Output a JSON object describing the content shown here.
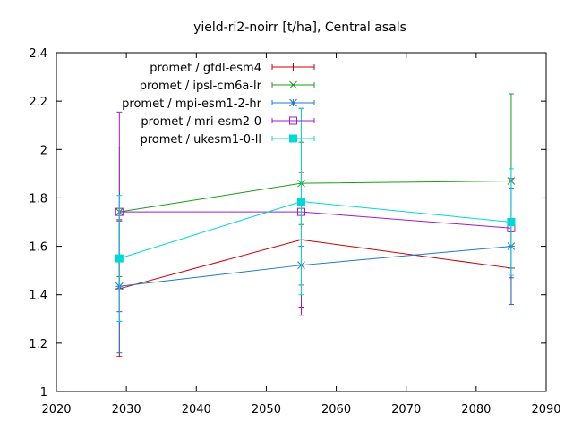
{
  "chart_data": {
    "type": "line",
    "title": "yield-ri2-noirr [t/ha], Central asals",
    "xlabel": "",
    "ylabel": "",
    "xlim": [
      2020,
      2090
    ],
    "ylim": [
      1,
      2.4
    ],
    "xticks": [
      "2020",
      "2030",
      "2040",
      "2050",
      "2060",
      "2070",
      "2080",
      "2090"
    ],
    "yticks": [
      "1",
      "1.2",
      "1.4",
      "1.6",
      "1.8",
      "2",
      "2.2",
      "2.4"
    ],
    "grid": false,
    "legend_position": "top-left",
    "x": [
      2029,
      2055,
      2085
    ],
    "series": [
      {
        "name": "promet / gfdl-esm4",
        "color": "#cc0000",
        "marker": "plus",
        "values": [
          1.425,
          1.627,
          1.51
        ],
        "err_low": [
          1.145,
          1.345,
          1.36
        ],
        "err_high": [
          1.705,
          1.905,
          1.66
        ]
      },
      {
        "name": "promet / ipsl-cm6a-lr",
        "color": "#1a9c1a",
        "marker": "cross",
        "values": [
          1.742,
          1.86,
          1.87
        ],
        "err_low": [
          1.475,
          1.69,
          1.51
        ],
        "err_high": [
          2.01,
          2.03,
          2.23
        ]
      },
      {
        "name": "promet / mpi-esm1-2-hr",
        "color": "#1f77c9",
        "marker": "star",
        "values": [
          1.435,
          1.522,
          1.6
        ],
        "err_low": [
          1.16,
          1.44,
          1.36
        ],
        "err_high": [
          1.71,
          1.6,
          1.84
        ]
      },
      {
        "name": "promet / mri-esm2-0",
        "color": "#9a1fc9",
        "marker": "square-open",
        "values": [
          1.742,
          1.742,
          1.675
        ],
        "err_low": [
          1.33,
          1.315,
          1.47
        ],
        "err_high": [
          2.155,
          2.17,
          1.88
        ]
      },
      {
        "name": "promet / ukesm1-0-ll",
        "color": "#00d8d8",
        "marker": "square-filled",
        "values": [
          1.55,
          1.785,
          1.7
        ],
        "err_low": [
          1.29,
          1.4,
          1.48
        ],
        "err_high": [
          1.81,
          2.17,
          1.92
        ]
      }
    ]
  }
}
